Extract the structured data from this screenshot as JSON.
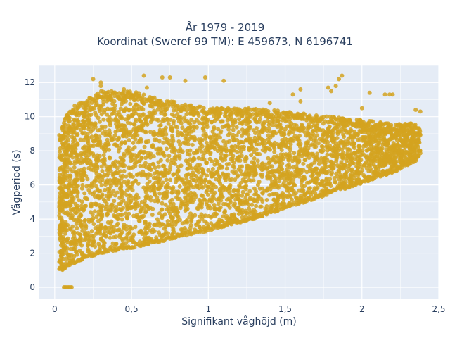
{
  "chart_data": {
    "type": "scatter",
    "title": "År 1979 - 2019",
    "subtitle": "Koordinat (Sweref 99 TM): E 459673, N 6196741",
    "xlabel": "Signifikant våghöjd (m)",
    "ylabel": "Vågperiod (s)",
    "xlim": [
      -0.1,
      2.5
    ],
    "ylim": [
      -0.7,
      13
    ],
    "xticks": [
      0,
      0.5,
      1,
      1.5,
      2,
      2.5
    ],
    "xtick_labels": [
      "0",
      "0,5",
      "1",
      "1,5",
      "2",
      "2,5"
    ],
    "yticks": [
      0,
      2,
      4,
      6,
      8,
      10,
      12
    ],
    "ytick_labels": [
      "0",
      "2",
      "4",
      "6",
      "8",
      "10",
      "12"
    ],
    "grid": true,
    "legend": "none",
    "marker_color": "#d4a320",
    "background": "#e5ecf6",
    "series": [
      {
        "values_description": "",
        "envelope": {
          "x": [
            0.03,
            0.05,
            0.1,
            0.2,
            0.3,
            0.5,
            0.7,
            1.0,
            1.3,
            1.5,
            1.8,
            2.0,
            2.2,
            2.35,
            2.38
          ],
          "y_min": [
            1.0,
            1.0,
            1.3,
            1.7,
            2.0,
            2.3,
            2.7,
            3.3,
            4.0,
            4.6,
            5.5,
            6.1,
            6.7,
            7.4,
            7.8
          ],
          "y_max": [
            9.0,
            9.5,
            10.5,
            11.0,
            11.5,
            11.5,
            11.0,
            10.5,
            10.5,
            10.3,
            10.0,
            9.8,
            9.6,
            9.6,
            9.2
          ]
        },
        "points": [
          [
            0.06,
            0
          ],
          [
            0.07,
            0
          ],
          [
            0.08,
            0
          ],
          [
            0.09,
            0
          ],
          [
            0.1,
            0
          ],
          [
            0.11,
            0
          ],
          [
            0.25,
            12.2
          ],
          [
            0.3,
            12.0
          ],
          [
            0.58,
            12.4
          ],
          [
            0.7,
            12.3
          ],
          [
            0.75,
            12.3
          ],
          [
            0.85,
            12.1
          ],
          [
            0.98,
            12.3
          ],
          [
            1.1,
            12.1
          ],
          [
            1.55,
            11.3
          ],
          [
            1.6,
            11.6
          ],
          [
            1.78,
            11.7
          ],
          [
            1.83,
            11.8
          ],
          [
            1.85,
            12.2
          ],
          [
            1.87,
            12.4
          ],
          [
            1.8,
            11.5
          ],
          [
            2.05,
            11.4
          ],
          [
            2.15,
            11.3
          ],
          [
            2.18,
            11.3
          ],
          [
            2.2,
            11.3
          ],
          [
            0.03,
            4.2
          ],
          [
            0.03,
            1.5
          ],
          [
            0.3,
            11.8
          ],
          [
            0.45,
            11.6
          ],
          [
            0.6,
            11.7
          ],
          [
            1.4,
            10.8
          ],
          [
            1.6,
            10.9
          ],
          [
            2.0,
            10.5
          ],
          [
            2.35,
            10.4
          ],
          [
            2.38,
            10.3
          ]
        ]
      }
    ]
  }
}
